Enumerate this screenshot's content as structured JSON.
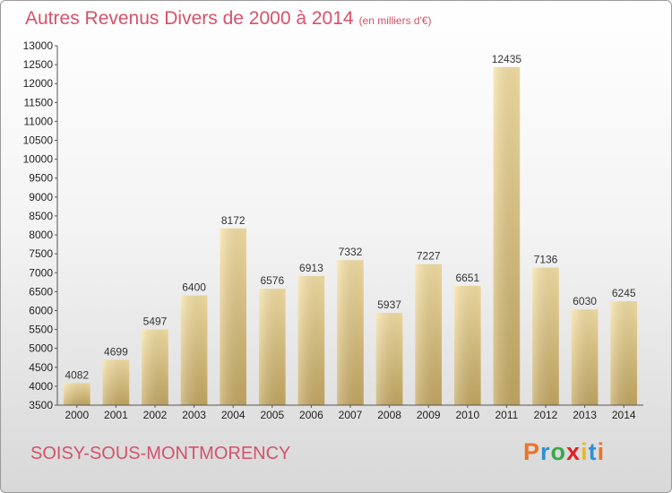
{
  "header": {
    "title": "Autres Revenus Divers de 2000 à 2014",
    "unit": "(en milliers d'€)"
  },
  "footer": {
    "city": "SOISY-SOUS-MONTMORENCY",
    "brand": "Proxiti",
    "brand_colors": [
      "#e8742a",
      "#2e8fd6",
      "#3aa84a",
      "#e02222",
      "#e8b828",
      "#2e8fd6",
      "#e8742a"
    ]
  },
  "chart_data": {
    "type": "bar",
    "title": "Autres Revenus Divers de 2000 à 2014",
    "subtitle": "(en milliers d'€)",
    "xlabel": "",
    "ylabel": "",
    "categories": [
      "2000",
      "2001",
      "2002",
      "2003",
      "2004",
      "2005",
      "2006",
      "2007",
      "2008",
      "2009",
      "2010",
      "2011",
      "2012",
      "2013",
      "2014"
    ],
    "values": [
      4082,
      4699,
      5497,
      6400,
      8172,
      6576,
      6913,
      7332,
      5937,
      7227,
      6651,
      12435,
      7136,
      6030,
      6245
    ],
    "data_labels": [
      "4082",
      "4699",
      "5497",
      "6400",
      "8172",
      "6576",
      "6913",
      "7332",
      "5937",
      "7227",
      "6651",
      "12435",
      "7136",
      "6030",
      "6245"
    ],
    "ylim": [
      3500,
      13000
    ],
    "yticks": [
      "3500",
      "4000",
      "4500",
      "5000",
      "5500",
      "6000",
      "6500",
      "7000",
      "7500",
      "8000",
      "8500",
      "9000",
      "9500",
      "10000",
      "10500",
      "11000",
      "11500",
      "12000",
      "12500",
      "13000"
    ],
    "grid": false,
    "legend": "none",
    "bar_color": "#dcc27a"
  }
}
